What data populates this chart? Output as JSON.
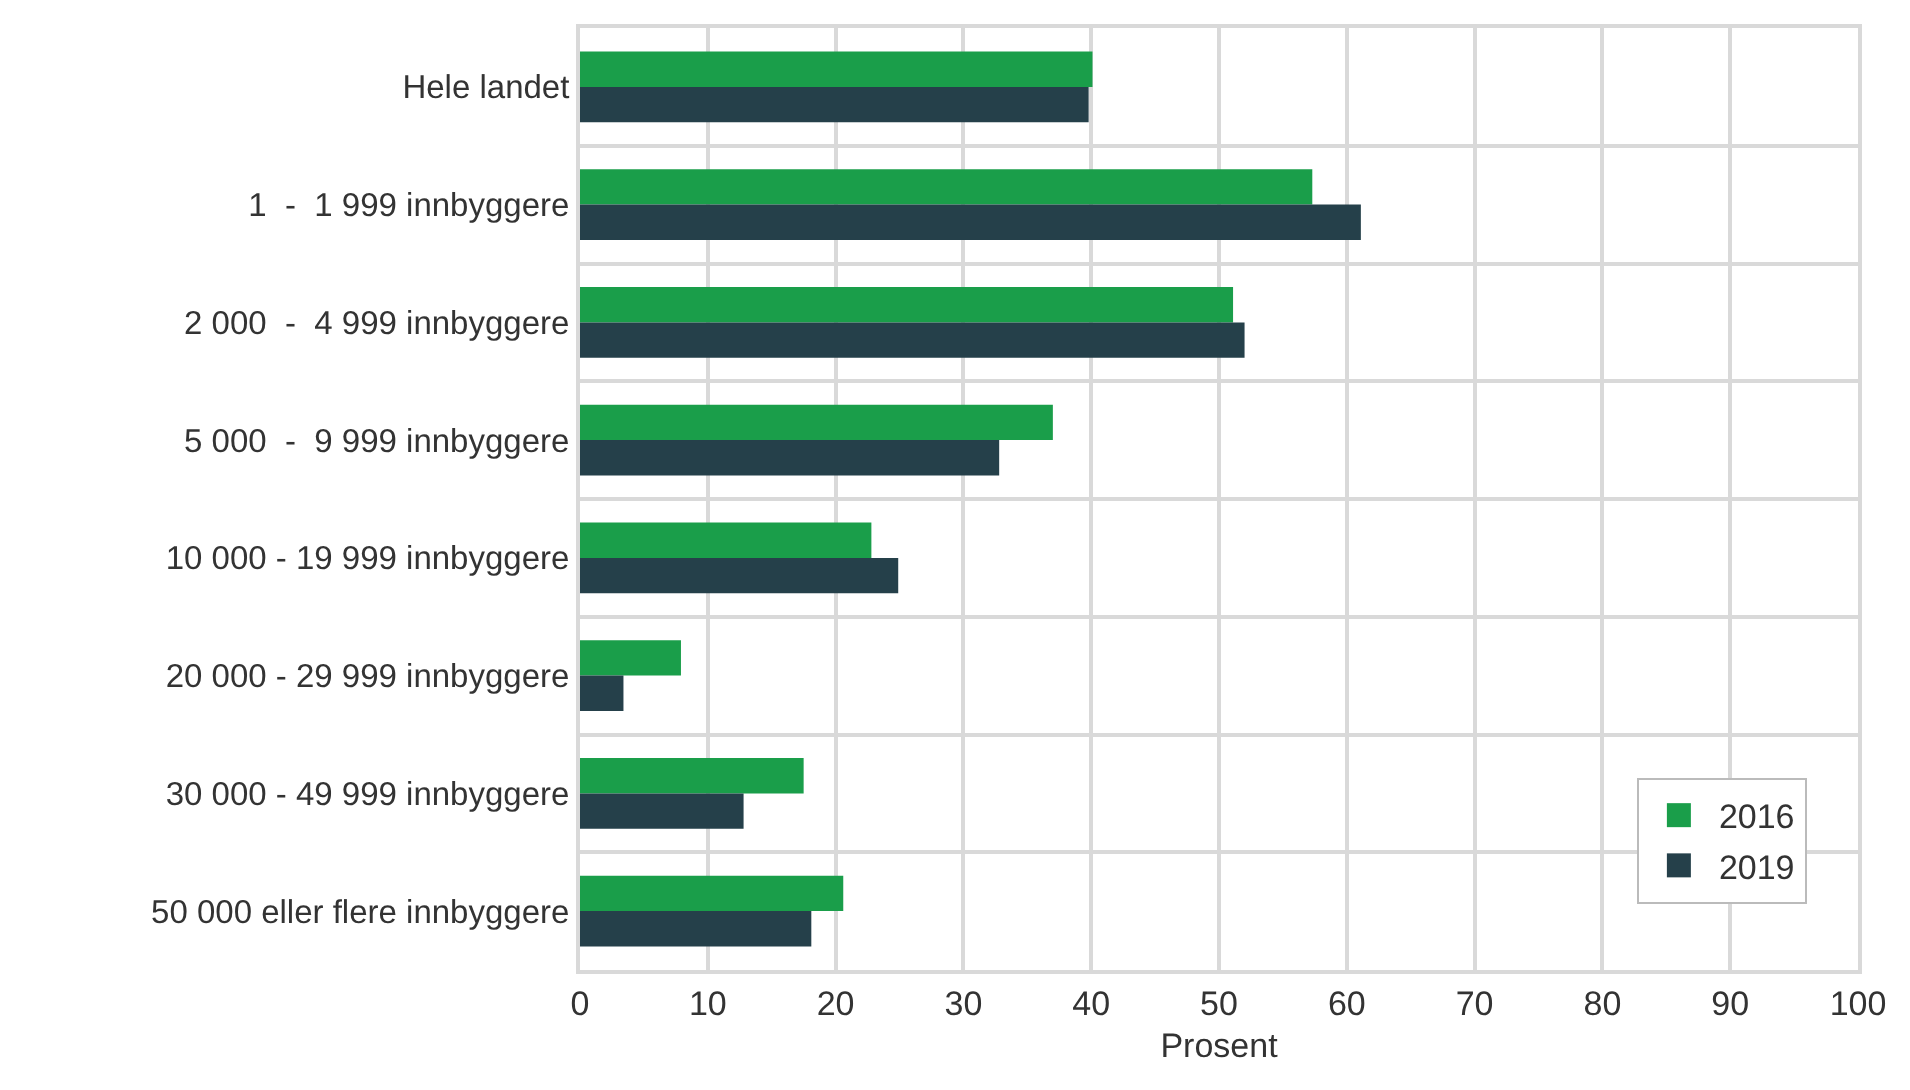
{
  "chart_data": {
    "type": "bar",
    "orientation": "horizontal",
    "xlabel": "Prosent",
    "categories": [
      "Hele landet",
      "1  -  1 999 innbyggere",
      "2 000  -  4 999 innbyggere",
      "5 000  -  9 999 innbyggere",
      "10 000 - 19 999 innbyggere",
      "20 000 - 29 999 innbyggere",
      "30 000 - 49 999 innbyggere",
      "50 000 eller flere innbyggere"
    ],
    "series": [
      {
        "name": "2016",
        "color": "#1a9e4a",
        "values": [
          40.1,
          57.3,
          51.1,
          37.0,
          22.8,
          7.9,
          17.5,
          20.6
        ]
      },
      {
        "name": "2019",
        "color": "#25404a",
        "values": [
          39.8,
          61.1,
          52.0,
          32.8,
          24.9,
          3.4,
          12.8,
          18.1
        ]
      }
    ],
    "xlim": [
      0,
      100
    ],
    "xticks": [
      0,
      10,
      20,
      30,
      40,
      50,
      60,
      70,
      80,
      90,
      100
    ],
    "grid": true,
    "legend": "bottom right"
  }
}
